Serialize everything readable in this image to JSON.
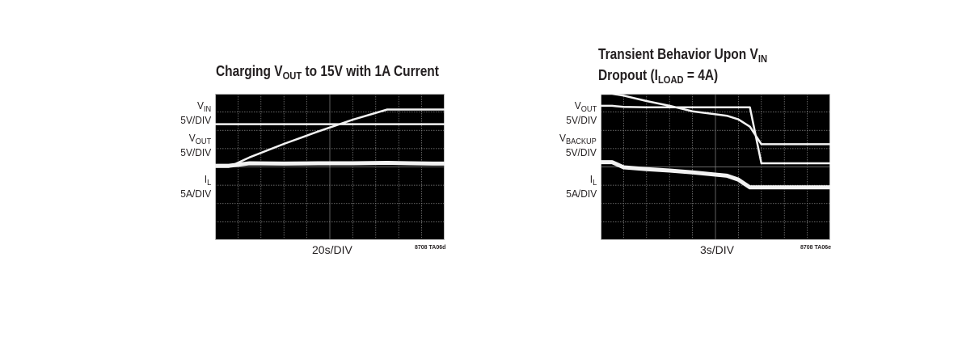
{
  "charts": [
    {
      "title": {
        "line1_pre": "Charging V",
        "line1_sub": "OUT",
        "line1_post": " to 15V with 1A Current"
      },
      "labels": [
        {
          "sym": "V",
          "sub": "IN",
          "scale": "5V/DIV"
        },
        {
          "sym": "V",
          "sub": "OUT",
          "scale": "5V/DIV"
        },
        {
          "sym": "I",
          "sub": "L",
          "scale": "5A/DIV"
        }
      ],
      "timebase": "20s/DIV",
      "code": "8708 TA06d"
    },
    {
      "title": {
        "line1_pre": "Transient Behavior Upon V",
        "line1_sub": "IN",
        "line2_pre": "Dropout (I",
        "line2_sub": "LOAD",
        "line2_post": " = 4A)"
      },
      "labels": [
        {
          "sym": "V",
          "sub": "OUT",
          "scale": "5V/DIV"
        },
        {
          "sym": "V",
          "sub": "BACKUP",
          "scale": "5V/DIV"
        },
        {
          "sym": "I",
          "sub": "L",
          "scale": "5A/DIV"
        }
      ],
      "timebase": "3s/DIV",
      "code": "8708 TA06e"
    }
  ],
  "chart_data": [
    {
      "type": "line",
      "grid": {
        "x_divisions": 10,
        "y_divisions": 8,
        "grid": true
      },
      "x_units_per_div": 20,
      "x": [
        0,
        12,
        30,
        60,
        90,
        120,
        150,
        170,
        190,
        200
      ],
      "series": [
        {
          "name": "VIN",
          "y": [
            11.7,
            11.7,
            11.7,
            11.7,
            11.7,
            11.7,
            11.7,
            11.7,
            11.7,
            11.7
          ]
        },
        {
          "name": "VOUT",
          "y": [
            0,
            0,
            2.6,
            6.3,
            9.7,
            12.9,
            15.7,
            15.7,
            15.7,
            15.7
          ]
        },
        {
          "name": "IL",
          "y": [
            0.3,
            0.3,
            1.0,
            0.9,
            1.0,
            1.0,
            1.1,
            1.0,
            0.9,
            0.9
          ]
        }
      ]
    },
    {
      "type": "line",
      "grid": {
        "x_divisions": 10,
        "y_divisions": 8,
        "grid": true
      },
      "x_units_per_div": 3,
      "x": [
        0,
        1.5,
        3,
        6,
        9,
        12,
        16.5,
        18,
        19.5,
        21,
        22.5,
        24,
        25,
        30
      ],
      "series": [
        {
          "name": "VOUT",
          "y": [
            20.0,
            20.0,
            19.5,
            18.0,
            16.7,
            15.2,
            14.0,
            13.0,
            11.0,
            6.2,
            6.2,
            6.2,
            6.2,
            6.2
          ]
        },
        {
          "name": "VBACKUP",
          "y": [
            16.7,
            16.7,
            16.4,
            16.3,
            16.3,
            16.3,
            16.3,
            16.3,
            16.3,
            1.0,
            1.0,
            1.0,
            1.0,
            1.0
          ]
        },
        {
          "name": "IL",
          "y": [
            1.3,
            1.3,
            -0.1,
            -0.6,
            -1.0,
            -1.5,
            -2.4,
            -3.5,
            -5.6,
            -5.6,
            -5.6,
            -5.6,
            -5.6,
            -5.6
          ]
        }
      ]
    }
  ]
}
